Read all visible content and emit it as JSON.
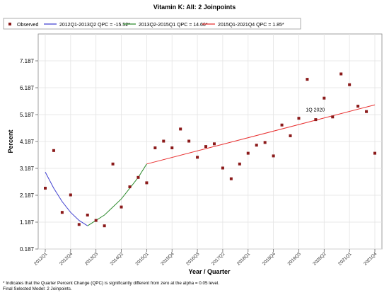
{
  "chart_data": {
    "type": "scatter",
    "title": "Vitamin K: All: 2 Joinpoints",
    "xlabel": "Year / Quarter",
    "ylabel": "Percent",
    "ylim": [
      0.187,
      8.187
    ],
    "y_ticks": [
      "0.187",
      "1.187",
      "2.187",
      "3.187",
      "4.187",
      "5.187",
      "6.187",
      "7.187"
    ],
    "x_tick_labels": [
      "2012Q1",
      "2012Q4",
      "2013Q3",
      "2014Q2",
      "2015Q1",
      "2015Q4",
      "2016Q3",
      "2017Q2",
      "2018Q1",
      "2018Q4",
      "2019Q3",
      "2020Q2",
      "2021Q1",
      "2021Q4"
    ],
    "x_tick_index": [
      0,
      3,
      6,
      9,
      12,
      15,
      18,
      21,
      24,
      27,
      30,
      33,
      36,
      39
    ],
    "grid": true,
    "legend_placement": "top",
    "observed": {
      "name": "Observed",
      "color": "#8b1a1a",
      "quarter_index": [
        0,
        1,
        2,
        3,
        4,
        5,
        6,
        7,
        8,
        9,
        10,
        11,
        12,
        13,
        14,
        15,
        16,
        17,
        18,
        19,
        20,
        21,
        22,
        23,
        24,
        25,
        26,
        27,
        28,
        29,
        30,
        31,
        32,
        33,
        34,
        35,
        36,
        37,
        38,
        39
      ],
      "values": [
        2.45,
        3.85,
        1.55,
        2.2,
        1.1,
        1.45,
        1.25,
        1.05,
        3.35,
        1.75,
        2.5,
        2.85,
        2.65,
        3.95,
        4.2,
        3.95,
        4.65,
        4.2,
        3.6,
        4.0,
        4.1,
        3.2,
        2.8,
        3.35,
        3.75,
        4.05,
        4.15,
        3.65,
        4.8,
        4.4,
        5.05,
        6.5,
        5.0,
        5.8,
        5.1,
        6.7,
        6.3,
        5.5,
        5.3,
        3.75
      ]
    },
    "series": [
      {
        "name": "2012Q1-2013Q2 QPC = -15.52*",
        "color": "#4040d0",
        "quarter_index": [
          0,
          1,
          2,
          3,
          4,
          5
        ],
        "values": [
          3.05,
          2.45,
          1.95,
          1.55,
          1.25,
          1.05
        ]
      },
      {
        "name": "2013Q2-2015Q1 QPC = 14.66*",
        "color": "#2e8b2e",
        "quarter_index": [
          5,
          6,
          7,
          8,
          9,
          10,
          11,
          12
        ],
        "values": [
          1.05,
          1.25,
          1.45,
          1.75,
          2.05,
          2.45,
          2.85,
          3.35
        ]
      },
      {
        "name": "2015Q1-2021Q4 QPC = 1.85*",
        "color": "#e83030",
        "quarter_index": [
          12,
          39
        ],
        "values": [
          3.35,
          5.55
        ]
      }
    ],
    "annotation": {
      "text": "1Q 2020",
      "quarter_index": 32,
      "value": 5.2
    }
  },
  "footnotes": [
    "* Indicates that the Quarter Percent Change (QPC) is significantly different from zero at the alpha = 0.05 level.",
    "Final Selected Model: 2 Joinpoints."
  ]
}
